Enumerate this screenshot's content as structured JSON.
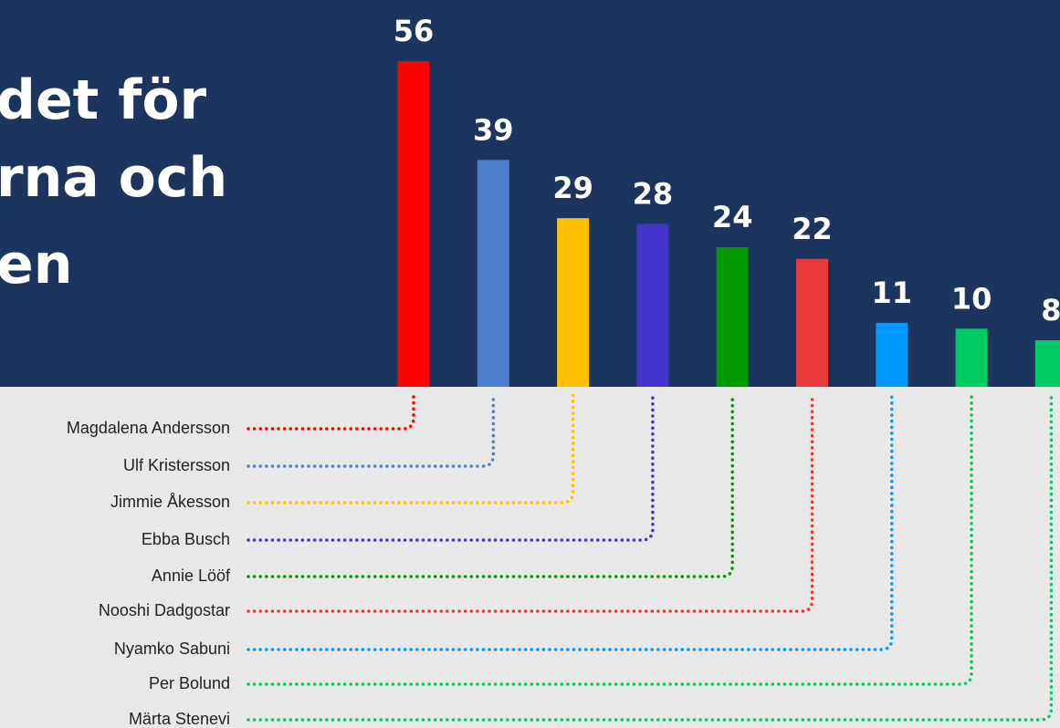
{
  "chart_data": {
    "type": "bar",
    "title_lines": [
      "det för",
      "rna och",
      "en"
    ],
    "categories": [
      "Magdalena Andersson",
      "Ulf Kristersson",
      "Jimmie Åkesson",
      "Ebba Busch",
      "Annie Lööf",
      "Nooshi Dadgostar",
      "Nyamko Sabuni",
      "Per Bolund",
      "Märta Stenevi"
    ],
    "values": [
      56,
      39,
      29,
      28,
      24,
      22,
      11,
      10,
      8
    ],
    "colors": [
      "#ff0000",
      "#4f7fcf",
      "#ffc000",
      "#4433cc",
      "#009900",
      "#e83a3a",
      "#0099ff",
      "#00cc66",
      "#00cc66"
    ]
  }
}
